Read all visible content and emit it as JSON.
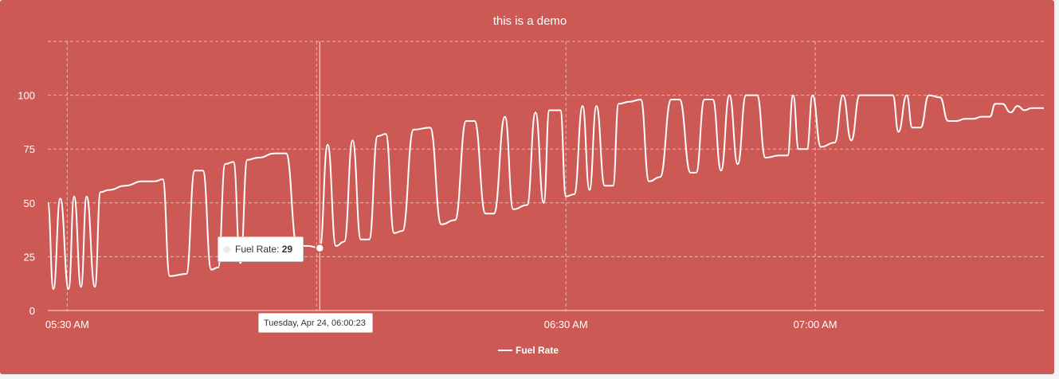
{
  "chart_data": {
    "type": "line",
    "title": "this is a demo",
    "xlabel": "",
    "ylabel": "",
    "ylim": [
      0,
      125
    ],
    "yticks": [
      0,
      25,
      50,
      75,
      100
    ],
    "xlim": [
      "05:27:40",
      "07:27:30"
    ],
    "xticks": [
      {
        "t": "05:30:00",
        "label": "05:30 AM"
      },
      {
        "t": "06:30:00",
        "label": "06:30 AM"
      },
      {
        "t": "07:00:00",
        "label": "07:00 AM"
      }
    ],
    "grid": true,
    "legend": {
      "position": "bottom-center",
      "entries": [
        "Fuel Rate"
      ]
    },
    "series": [
      {
        "name": "Fuel Rate",
        "color": "#ffffff",
        "points": [
          [
            "05:27:40",
            50
          ],
          [
            "05:28:20",
            10
          ],
          [
            "05:29:10",
            52
          ],
          [
            "05:30:10",
            10
          ],
          [
            "05:30:50",
            53
          ],
          [
            "05:31:40",
            11
          ],
          [
            "05:32:20",
            53
          ],
          [
            "05:33:20",
            11
          ],
          [
            "05:34:00",
            55
          ],
          [
            "05:35:00",
            56
          ],
          [
            "05:37:00",
            58
          ],
          [
            "05:39:00",
            60
          ],
          [
            "05:40:30",
            60
          ],
          [
            "05:41:30",
            61
          ],
          [
            "05:42:20",
            16
          ],
          [
            "05:44:20",
            17
          ],
          [
            "05:45:20",
            65
          ],
          [
            "05:46:20",
            65
          ],
          [
            "05:47:20",
            19
          ],
          [
            "05:48:10",
            20
          ],
          [
            "05:49:00",
            68
          ],
          [
            "05:50:00",
            69
          ],
          [
            "05:50:50",
            22
          ],
          [
            "05:51:40",
            70
          ],
          [
            "05:53:00",
            71
          ],
          [
            "05:55:00",
            73
          ],
          [
            "05:56:20",
            73
          ],
          [
            "05:57:40",
            30
          ],
          [
            "05:59:00",
            30
          ],
          [
            "06:00:23",
            29
          ],
          [
            "06:01:20",
            77
          ],
          [
            "06:02:20",
            30
          ],
          [
            "06:03:20",
            32
          ],
          [
            "06:04:20",
            79
          ],
          [
            "06:05:20",
            33
          ],
          [
            "06:06:20",
            33
          ],
          [
            "06:07:20",
            81
          ],
          [
            "06:08:20",
            82
          ],
          [
            "06:09:20",
            36
          ],
          [
            "06:10:20",
            37
          ],
          [
            "06:11:40",
            84
          ],
          [
            "06:13:40",
            85
          ],
          [
            "06:15:00",
            40
          ],
          [
            "06:16:40",
            42
          ],
          [
            "06:18:00",
            88
          ],
          [
            "06:19:00",
            88
          ],
          [
            "06:20:20",
            45
          ],
          [
            "06:21:20",
            45
          ],
          [
            "06:22:40",
            90
          ],
          [
            "06:23:40",
            47
          ],
          [
            "06:25:20",
            49
          ],
          [
            "06:26:20",
            92
          ],
          [
            "06:27:20",
            50
          ],
          [
            "06:28:00",
            93
          ],
          [
            "06:29:20",
            93
          ],
          [
            "06:30:00",
            53
          ],
          [
            "06:31:00",
            54
          ],
          [
            "06:32:00",
            95
          ],
          [
            "06:32:50",
            56
          ],
          [
            "06:33:40",
            95
          ],
          [
            "06:34:40",
            58
          ],
          [
            "06:35:40",
            58
          ],
          [
            "06:36:20",
            96
          ],
          [
            "06:37:40",
            97
          ],
          [
            "06:39:00",
            98
          ],
          [
            "06:40:00",
            60
          ],
          [
            "06:41:20",
            62
          ],
          [
            "06:42:40",
            98
          ],
          [
            "06:43:40",
            98
          ],
          [
            "06:45:00",
            64
          ],
          [
            "06:45:40",
            64
          ],
          [
            "06:46:40",
            98
          ],
          [
            "06:47:40",
            98
          ],
          [
            "06:48:40",
            65
          ],
          [
            "06:49:40",
            100
          ],
          [
            "06:50:40",
            68
          ],
          [
            "06:51:40",
            100
          ],
          [
            "06:53:00",
            100
          ],
          [
            "06:54:00",
            71
          ],
          [
            "06:55:40",
            72
          ],
          [
            "06:56:40",
            72
          ],
          [
            "06:57:20",
            100
          ],
          [
            "06:58:00",
            75
          ],
          [
            "06:59:00",
            75
          ],
          [
            "06:59:40",
            100
          ],
          [
            "07:00:40",
            76
          ],
          [
            "07:02:20",
            78
          ],
          [
            "07:03:20",
            100
          ],
          [
            "07:04:20",
            79
          ],
          [
            "07:05:20",
            100
          ],
          [
            "07:07:20",
            100
          ],
          [
            "07:09:20",
            100
          ],
          [
            "07:10:00",
            83
          ],
          [
            "07:11:00",
            100
          ],
          [
            "07:11:40",
            85
          ],
          [
            "07:12:40",
            85
          ],
          [
            "07:13:40",
            100
          ],
          [
            "07:15:00",
            99
          ],
          [
            "07:16:00",
            88
          ],
          [
            "07:17:00",
            88
          ],
          [
            "07:18:00",
            89
          ],
          [
            "07:19:00",
            89
          ],
          [
            "07:20:00",
            90
          ],
          [
            "07:21:00",
            90
          ],
          [
            "07:21:40",
            96
          ],
          [
            "07:22:30",
            96
          ],
          [
            "07:23:30",
            92
          ],
          [
            "07:24:20",
            95
          ],
          [
            "07:25:10",
            93
          ],
          [
            "07:26:00",
            94
          ],
          [
            "07:27:30",
            94
          ]
        ]
      }
    ],
    "crosshair": {
      "t": "06:00:23"
    }
  },
  "tooltip": {
    "series_label": "Fuel Rate: ",
    "value": "29",
    "date": "Tuesday, Apr 24, 06:00:23"
  }
}
